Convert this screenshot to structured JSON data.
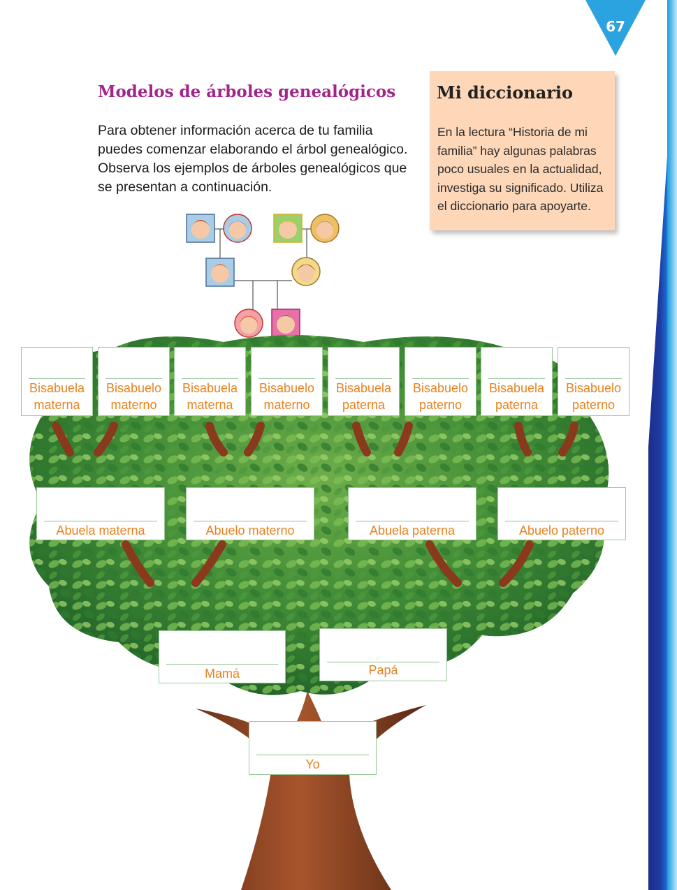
{
  "page_number": "67",
  "title": "Modelos de árboles genealógicos",
  "intro_text": "Para obtener información acerca de tu familia puedes comenzar elaborando el árbol genealógico. Observa los ejemplos de árboles genealógicos que se presentan a continuación.",
  "dictionary": {
    "title": "Mi diccionario",
    "text": "En la lectura “Historia de mi familia” hay algunas palabras poco usuales en la actualidad, investiga su significado. Utiliza el diccionario para apoyarte."
  },
  "great_grandparents": [
    {
      "line1": "Bisabuela",
      "line2": "materna"
    },
    {
      "line1": "Bisabuelo",
      "line2": "materno"
    },
    {
      "line1": "Bisabuela",
      "line2": "materna"
    },
    {
      "line1": "Bisabuelo",
      "line2": "materno"
    },
    {
      "line1": "Bisabuela",
      "line2": "paterna"
    },
    {
      "line1": "Bisabuelo",
      "line2": "paterno"
    },
    {
      "line1": "Bisabuela",
      "line2": "paterna"
    },
    {
      "line1": "Bisabuelo",
      "line2": "paterno"
    }
  ],
  "grandparents": [
    "Abuela materna",
    "Abuelo materno",
    "Abuela paterna",
    "Abuelo paterno"
  ],
  "parents": [
    "Mamá",
    "Papá"
  ],
  "self": "Yo",
  "colors": {
    "title": "#a3258a",
    "labels": "#e8821e",
    "dictionary_bg": "#fdd7b8",
    "page_badge": "#2aa3e0"
  }
}
